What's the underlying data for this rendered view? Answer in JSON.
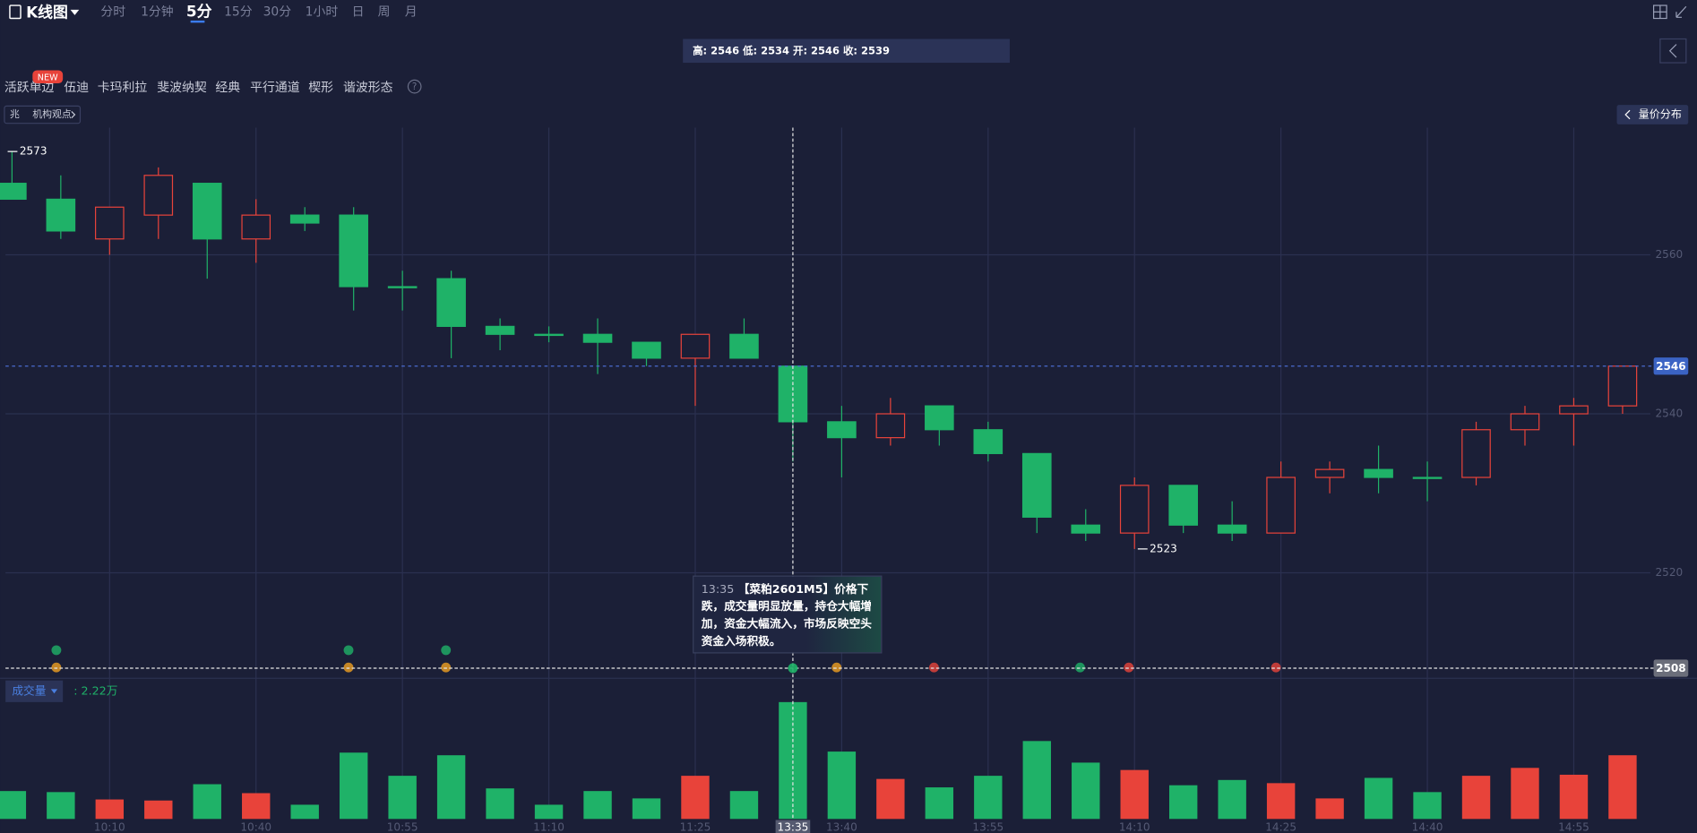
{
  "toolbar": {
    "title": "K线图",
    "periods": [
      "分时",
      "1分钟",
      "5分",
      "15分",
      "30分",
      "1小时",
      "日",
      "周",
      "月"
    ],
    "active_period": "5分"
  },
  "indicators": {
    "items": [
      "活跃单边",
      "伍迪",
      "卡玛利拉",
      "斐波纳契",
      "经典",
      "平行通道",
      "楔形",
      "谐波形态"
    ],
    "badge": "NEW",
    "help": "?"
  },
  "tags": {
    "prefix": "兆",
    "institution": "机构观点",
    "volume_profile": "量价分布"
  },
  "chart_data": {
    "type": "candlestick",
    "categories": [
      null,
      null,
      "10:10",
      null,
      null,
      "10:40",
      null,
      null,
      "10:55",
      null,
      null,
      "11:10",
      null,
      null,
      "11:25",
      null,
      "13:35",
      "13:40",
      null,
      null,
      "13:55",
      null,
      null,
      "14:10",
      null,
      null,
      "14:25",
      null,
      null,
      "14:40",
      null,
      null,
      "14:55",
      null
    ],
    "open": [
      2569,
      2567,
      2562,
      2565,
      2569,
      2562,
      2565,
      2565,
      2556,
      2557,
      2551,
      2550,
      2550,
      2549,
      2547,
      2550,
      2546,
      2539,
      2537,
      2541,
      2538,
      2535,
      2526,
      2525,
      2531,
      2526,
      2525,
      2532,
      2533,
      2532,
      2532,
      2538,
      2540,
      2541
    ],
    "high": [
      2573,
      2570,
      2566,
      2571,
      2569,
      2567,
      2566,
      2566,
      2558,
      2558,
      2552,
      2551,
      2552,
      2549,
      2550,
      2552,
      2546,
      2541,
      2542,
      2541,
      2539,
      2535,
      2528,
      2532,
      2531,
      2529,
      2534,
      2534,
      2536,
      2534,
      2539,
      2541,
      2542,
      2546
    ],
    "low": [
      2567,
      2562,
      2560,
      2562,
      2557,
      2559,
      2563,
      2553,
      2553,
      2547,
      2548,
      2549,
      2545,
      2546,
      2541,
      2547,
      2534,
      2532,
      2536,
      2536,
      2534,
      2525,
      2524,
      2523,
      2525,
      2524,
      2525,
      2530,
      2530,
      2529,
      2531,
      2536,
      2536,
      2540
    ],
    "close": [
      2567,
      2563,
      2566,
      2570,
      2562,
      2565,
      2564,
      2556,
      2556,
      2551,
      2550,
      2550,
      2549,
      2547,
      2550,
      2547,
      2539,
      2537,
      2540,
      2538,
      2535,
      2527,
      2525,
      2531,
      2526,
      2525,
      2532,
      2533,
      2532,
      2532,
      2538,
      2540,
      2541,
      2546
    ],
    "up_color": "#e8433a",
    "down_color": "#1fb268",
    "ylim": [
      2507,
      2576
    ],
    "yticks": [
      2520,
      2540,
      2560
    ],
    "grid": true,
    "ohlc_readout": "高: 2546 低: 2534 开: 2546 收: 2539",
    "high_marker": 2573,
    "low_marker": 2523,
    "last_price": 2546,
    "crosshair_price": 2508,
    "annotation": {
      "time": "13:35",
      "text": "【菜粕2601M5】价格下跌，成交量明显放量，持仓大幅增加，资金大幅流入，市场反映空头资金入场积极。"
    },
    "volume": {
      "name": "成交量",
      "readout": ": 2.22万",
      "values": [
        0.53,
        0.51,
        0.37,
        0.35,
        0.66,
        0.49,
        0.27,
        1.26,
        0.82,
        1.21,
        0.58,
        0.27,
        0.53,
        0.39,
        0.82,
        0.53,
        2.22,
        1.28,
        0.76,
        0.6,
        0.82,
        1.48,
        1.07,
        0.93,
        0.64,
        0.74,
        0.68,
        0.39,
        0.78,
        0.51,
        0.82,
        0.97,
        0.84,
        1.21
      ]
    }
  }
}
